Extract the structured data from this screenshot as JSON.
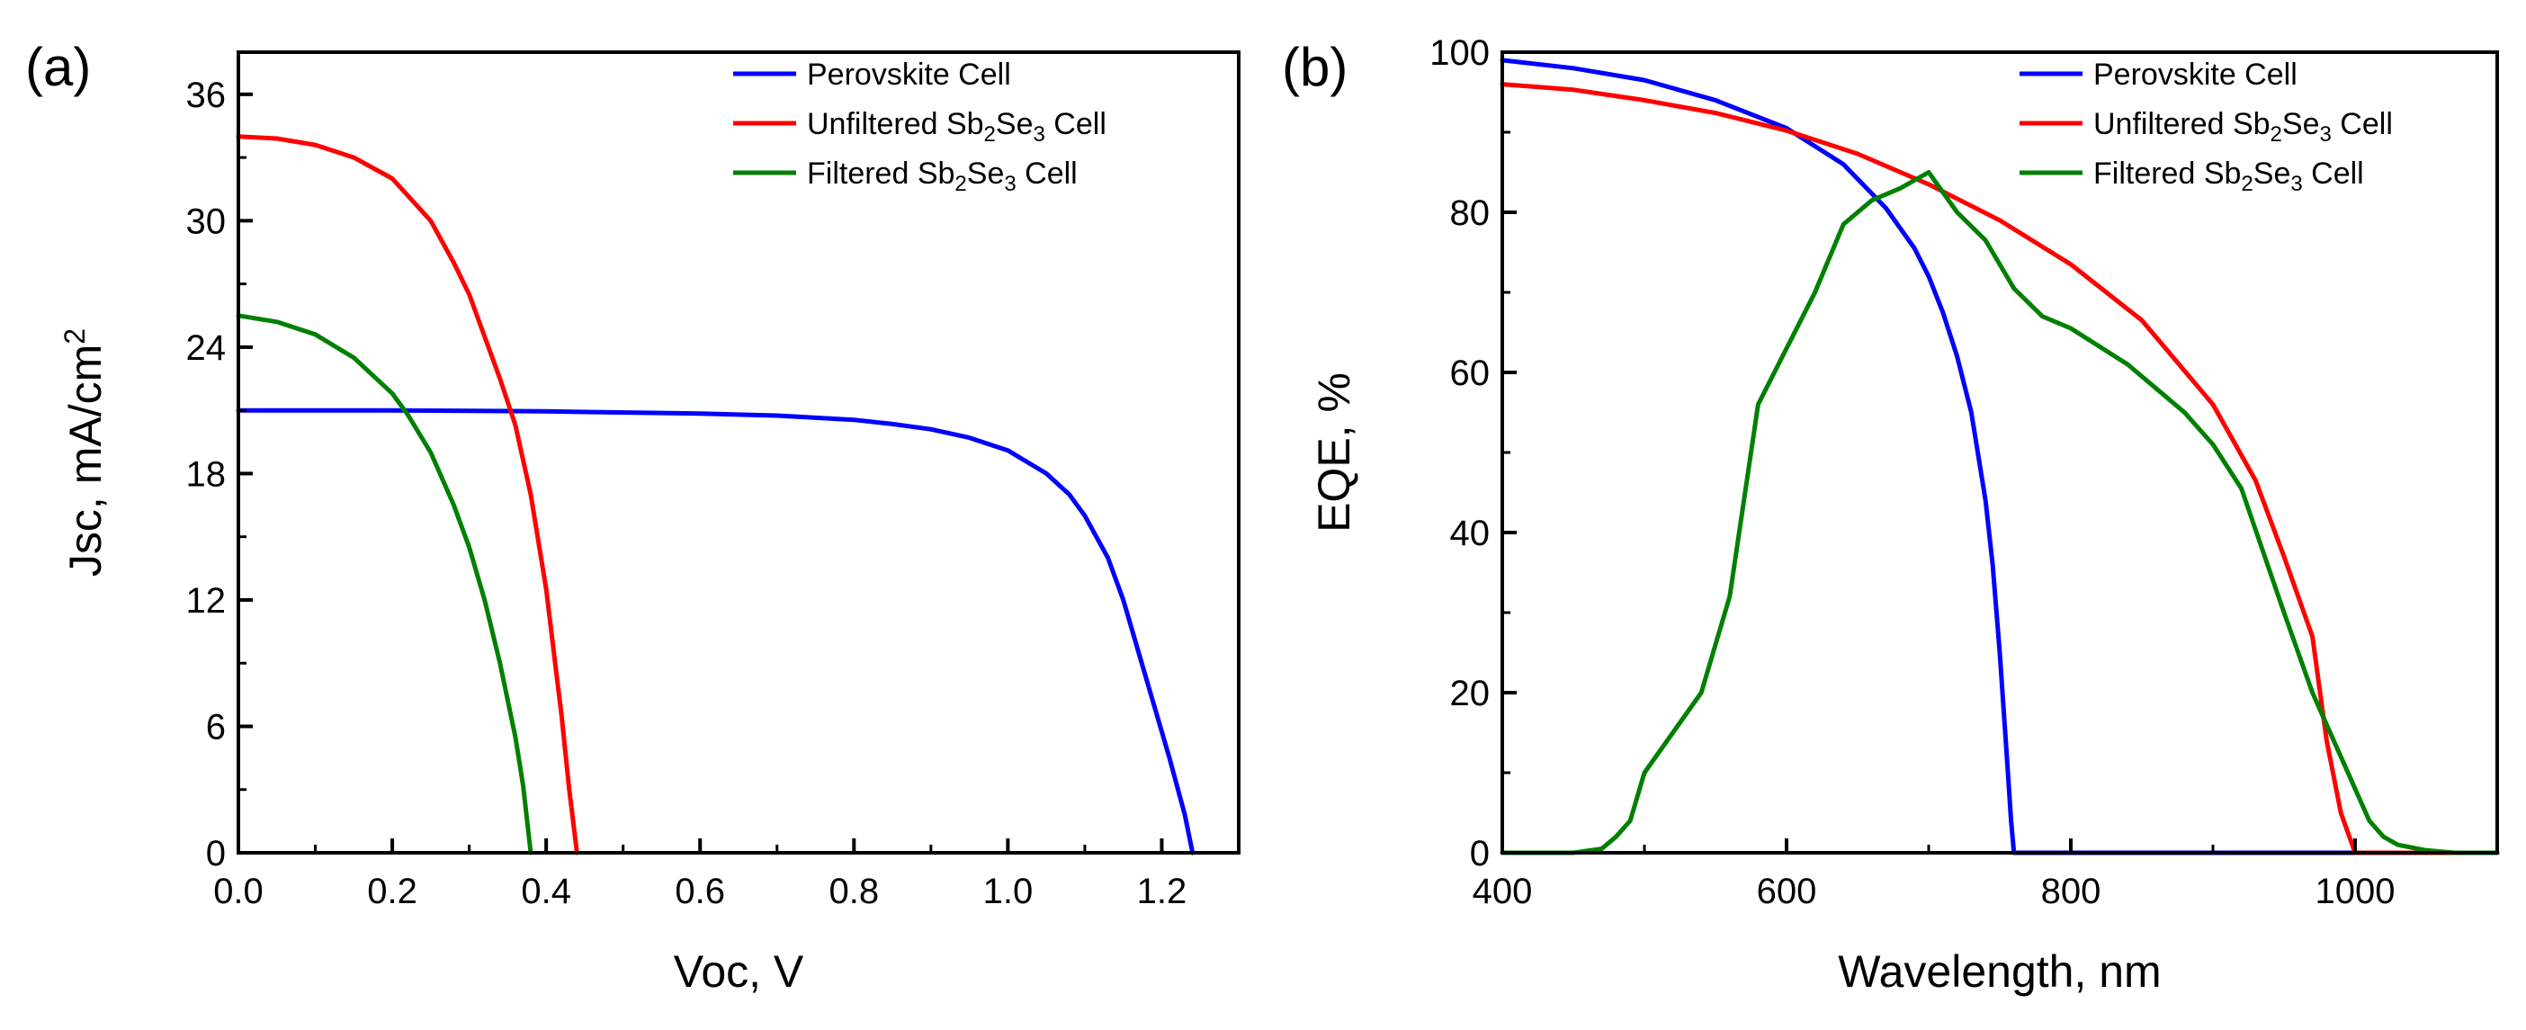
{
  "panels": [
    {
      "label": "(a)",
      "chart_data": {
        "type": "line",
        "title": "",
        "xlabel": "Voc, V",
        "ylabel_base": "Jsc, mA/cm",
        "ylabel_sup": "2",
        "xlim": [
          0.0,
          1.3
        ],
        "ylim": [
          0,
          38
        ],
        "xticks": [
          0.0,
          0.2,
          0.4,
          0.6,
          0.8,
          1.0,
          1.2
        ],
        "xtick_labels": [
          "0.0",
          "0.2",
          "0.4",
          "0.6",
          "0.8",
          "1.0",
          "1.2"
        ],
        "yticks": [
          0,
          6,
          12,
          18,
          24,
          30,
          36
        ],
        "ytick_labels": [
          "0",
          "6",
          "12",
          "18",
          "24",
          "30",
          "36"
        ],
        "grid": false,
        "legend_position": "top-right",
        "series": [
          {
            "name": "Perovskite Cell",
            "legend_parts": [
              "Perovskite Cell"
            ],
            "color": "#0000ff",
            "x": [
              0.0,
              0.2,
              0.4,
              0.6,
              0.7,
              0.8,
              0.85,
              0.9,
              0.95,
              1.0,
              1.05,
              1.08,
              1.1,
              1.13,
              1.15,
              1.17,
              1.19,
              1.21,
              1.23,
              1.24
            ],
            "y": [
              21.0,
              21.0,
              20.95,
              20.85,
              20.75,
              20.55,
              20.35,
              20.1,
              19.7,
              19.1,
              18.0,
              17.0,
              16.0,
              14.0,
              12.0,
              9.5,
              7.0,
              4.5,
              1.8,
              0
            ]
          },
          {
            "name": "Unfiltered Sb2Se3 Cell",
            "legend_parts": [
              "Unfiltered Sb",
              "2",
              "Se",
              "3",
              " Cell"
            ],
            "color": "#ff0000",
            "x": [
              0.0,
              0.05,
              0.1,
              0.15,
              0.2,
              0.25,
              0.28,
              0.3,
              0.32,
              0.34,
              0.36,
              0.38,
              0.4,
              0.41,
              0.42,
              0.43,
              0.44
            ],
            "y": [
              34.0,
              33.9,
              33.6,
              33.0,
              32.0,
              30.0,
              28.0,
              26.5,
              24.5,
              22.5,
              20.3,
              17.0,
              12.5,
              9.5,
              6.5,
              3.0,
              0
            ]
          },
          {
            "name": "Filtered Sb2Se3 Cell",
            "legend_parts": [
              "Filtered Sb",
              "2",
              "Se",
              "3",
              " Cell"
            ],
            "color": "#008000",
            "x": [
              0.0,
              0.05,
              0.1,
              0.15,
              0.2,
              0.22,
              0.25,
              0.28,
              0.3,
              0.32,
              0.34,
              0.36,
              0.37,
              0.38
            ],
            "y": [
              25.5,
              25.2,
              24.6,
              23.5,
              21.8,
              20.8,
              19.0,
              16.5,
              14.5,
              12.0,
              9.0,
              5.5,
              3.2,
              0
            ]
          }
        ]
      }
    },
    {
      "label": "(b)",
      "chart_data": {
        "type": "line",
        "title": "",
        "xlabel": "Wavelength,  nm",
        "ylabel": "EQE,  %",
        "xlim": [
          400,
          1100
        ],
        "ylim": [
          0,
          100
        ],
        "xticks": [
          400,
          600,
          800,
          1000
        ],
        "xtick_labels": [
          "400",
          "600",
          "800",
          "1000"
        ],
        "yticks": [
          0,
          20,
          40,
          60,
          80,
          100
        ],
        "ytick_labels": [
          "0",
          "20",
          "40",
          "60",
          "80",
          "100"
        ],
        "grid": false,
        "legend_position": "top-right",
        "series": [
          {
            "name": "Perovskite Cell",
            "legend_parts": [
              "Perovskite Cell"
            ],
            "color": "#0000ff",
            "x": [
              400,
              450,
              500,
              550,
              600,
              640,
              670,
              690,
              700,
              710,
              720,
              730,
              740,
              745,
              750,
              755,
              758,
              760,
              800,
              1000,
              1100
            ],
            "y": [
              99,
              98,
              96.5,
              94,
              90.5,
              86,
              80.5,
              75.5,
              72,
              67.5,
              62,
              55,
              44,
              36,
              25,
              12,
              4,
              0,
              0,
              0,
              0
            ]
          },
          {
            "name": "Unfiltered Sb2Se3 Cell",
            "legend_parts": [
              "Unfiltered Sb",
              "2",
              "Se",
              "3",
              " Cell"
            ],
            "color": "#ff0000",
            "x": [
              400,
              450,
              500,
              550,
              600,
              650,
              700,
              750,
              800,
              850,
              900,
              930,
              950,
              970,
              980,
              990,
              1000,
              1100
            ],
            "y": [
              96,
              95.3,
              94,
              92.4,
              90.2,
              87.3,
              83.5,
              79,
              73.5,
              66.5,
              56,
              46.5,
              37,
              27,
              14,
              5,
              0,
              0
            ]
          },
          {
            "name": "Filtered Sb2Se3 Cell",
            "legend_parts": [
              "Filtered Sb",
              "2",
              "Se",
              "3",
              " Cell"
            ],
            "color": "#008000",
            "x": [
              400,
              450,
              470,
              480,
              490,
              500,
              520,
              540,
              560,
              580,
              600,
              620,
              640,
              660,
              680,
              700,
              720,
              740,
              760,
              780,
              800,
              840,
              880,
              900,
              920,
              950,
              970,
              990,
              1000,
              1010,
              1020,
              1030,
              1050,
              1070,
              1100
            ],
            "y": [
              0,
              0,
              0.5,
              2,
              4,
              10,
              15,
              20,
              32,
              56,
              63,
              70,
              78.5,
              81.5,
              83,
              85,
              80,
              76.5,
              70.5,
              67,
              65.5,
              61,
              55,
              51,
              45.5,
              30,
              20,
              12,
              8,
              4,
              2,
              1,
              0.3,
              0,
              0
            ]
          }
        ]
      }
    }
  ]
}
